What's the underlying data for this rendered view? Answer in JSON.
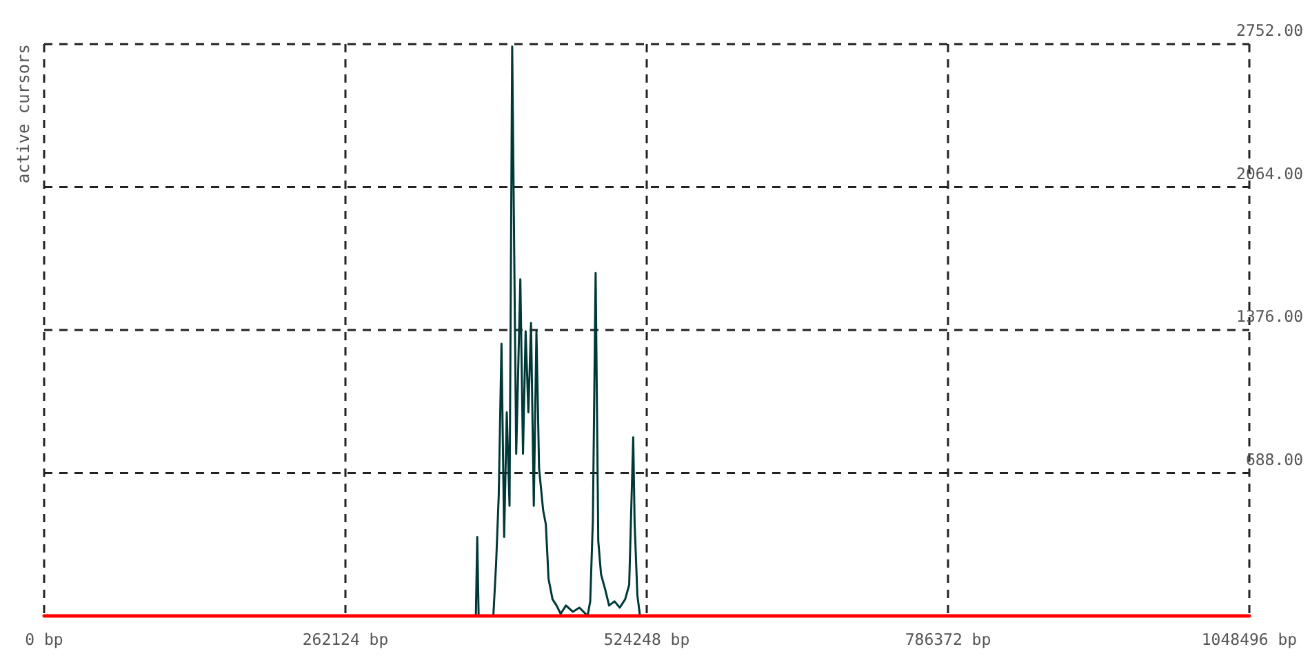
{
  "chart_data": {
    "type": "line",
    "ylabel": "active cursors",
    "xlim": [
      0,
      1048496
    ],
    "xticks": [
      {
        "value": 0,
        "label": "0 bp"
      },
      {
        "value": 262124,
        "label": "262124 bp"
      },
      {
        "value": 524248,
        "label": "524248 bp"
      },
      {
        "value": 786372,
        "label": "786372 bp"
      },
      {
        "value": 1048496,
        "label": "1048496 bp"
      }
    ],
    "ylim": [
      0,
      2752
    ],
    "yticks": [
      {
        "value": 0,
        "label": null
      },
      {
        "value": 688,
        "label": "688.00"
      },
      {
        "value": 1376,
        "label": "1376.00"
      },
      {
        "value": 2064,
        "label": "2064.00"
      },
      {
        "value": 2752,
        "label": "2752.00"
      }
    ],
    "grid": true,
    "series": [
      {
        "color": "#003838",
        "x": [
          0,
          372000,
          375600,
          376800,
          378000,
          390800,
          393200,
          395500,
          397900,
          400200,
          402500,
          404900,
          407200,
          410700,
          414300,
          416600,
          418900,
          421300,
          423600,
          426000,
          428300,
          430600,
          434100,
          436500,
          438800,
          442300,
          445800,
          449400,
          454000,
          459900,
          465700,
          472800,
          475100,
          477400,
          479800,
          482100,
          484500,
          488000,
          491500,
          496200,
          500800,
          505500,
          509000,
          512500,
          513700,
          516100,
          518400,
          1048496
        ],
        "values": [
          0,
          0,
          0,
          380,
          0,
          0,
          250,
          580,
          1310,
          380,
          980,
          530,
          2740,
          780,
          1620,
          780,
          1370,
          980,
          1410,
          530,
          1370,
          710,
          510,
          440,
          180,
          80,
          50,
          10,
          50,
          20,
          40,
          0,
          70,
          460,
          1650,
          360,
          200,
          130,
          50,
          70,
          40,
          80,
          150,
          860,
          450,
          100,
          0,
          0
        ]
      },
      {
        "color": "#ff0000",
        "x": [
          0,
          1048496
        ],
        "values": [
          0,
          0
        ]
      }
    ]
  }
}
